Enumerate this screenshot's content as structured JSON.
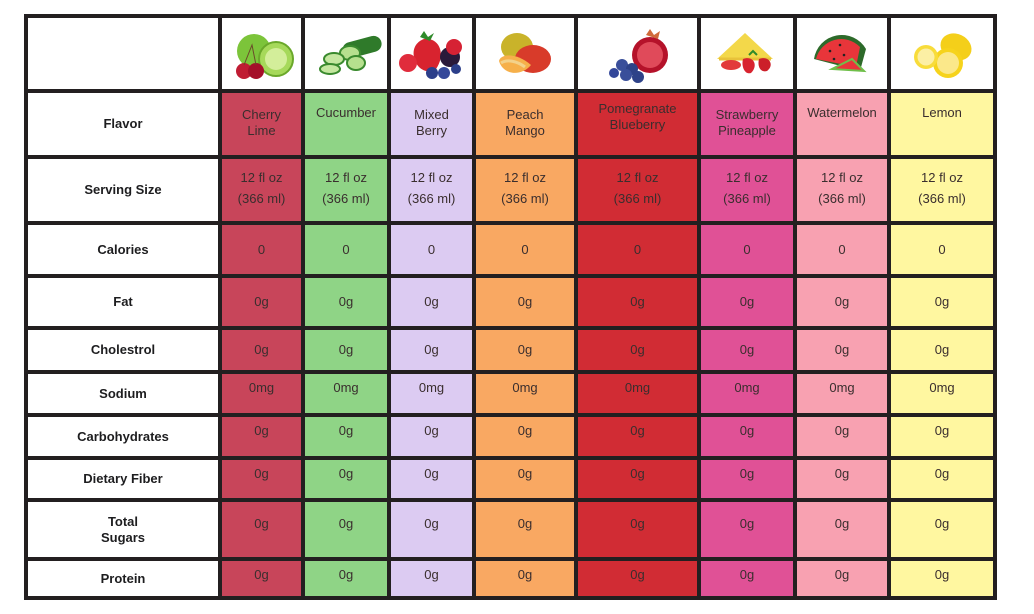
{
  "table": {
    "colors": {
      "border": "#231f20",
      "cherry_lime": "#c8455a",
      "cucumber": "#8fd486",
      "mixed_berry": "#dccbf2",
      "peach_mango": "#f9a862",
      "pomegranate_blueberry": "#d12c34",
      "strawberry_pineapple": "#e05196",
      "watermelon": "#f8a1b1",
      "lemon": "#fff7a0"
    },
    "flavors": [
      {
        "key": "cherry_lime",
        "name": "Cherry Lime",
        "line1": "Cherry",
        "line2": "Lime",
        "image": "cherry-lime-fruit-icon"
      },
      {
        "key": "cucumber",
        "name": "Cucumber",
        "line1": "Cucumber",
        "line2": "",
        "image": "cucumber-fruit-icon"
      },
      {
        "key": "mixed_berry",
        "name": "Mixed Berry",
        "line1": "Mixed",
        "line2": "Berry",
        "image": "mixed-berry-fruit-icon"
      },
      {
        "key": "peach_mango",
        "name": "Peach Mango",
        "line1": "Peach",
        "line2": "Mango",
        "image": "peach-mango-fruit-icon"
      },
      {
        "key": "pomegranate_blueberry",
        "name": "Pomegranate Blueberry",
        "line1": "Pomegranate",
        "line2": "Blueberry",
        "image": "pomegranate-blueberry-fruit-icon"
      },
      {
        "key": "strawberry_pineapple",
        "name": "Strawberry Pineapple",
        "line1": "Strawberry",
        "line2": "Pineapple",
        "image": "strawberry-pineapple-fruit-icon"
      },
      {
        "key": "watermelon",
        "name": "Watermelon",
        "line1": "Watermelon",
        "line2": "",
        "image": "watermelon-fruit-icon"
      },
      {
        "key": "lemon",
        "name": "Lemon",
        "line1": "Lemon",
        "line2": "",
        "image": "lemon-fruit-icon"
      }
    ],
    "rows": [
      {
        "label": "Flavor",
        "label2": ""
      },
      {
        "label": "Serving Size",
        "label2": "",
        "values": [
          "12 fl oz|(366 ml)",
          "12 fl oz|(366 ml)",
          "12 fl oz|(366 ml)",
          "12 fl oz|(366 ml)",
          "12 fl oz|(366 ml)",
          "12 fl oz|(366 ml)",
          "12 fl oz|(366 ml)",
          "12 fl oz|(366 ml)"
        ]
      },
      {
        "label": "Calories",
        "label2": "",
        "values": [
          "0",
          "0",
          "0",
          "0",
          "0",
          "0",
          "0",
          "0"
        ]
      },
      {
        "label": "Fat",
        "label2": "",
        "values": [
          "0g",
          "0g",
          "0g",
          "0g",
          "0g",
          "0g",
          "0g",
          "0g"
        ]
      },
      {
        "label": "Cholestrol",
        "label2": "",
        "values": [
          "0g",
          "0g",
          "0g",
          "0g",
          "0g",
          "0g",
          "0g",
          "0g"
        ]
      },
      {
        "label": "Sodium",
        "label2": "",
        "values": [
          "0mg",
          "0mg",
          "0mg",
          "0mg",
          "0mg",
          "0mg",
          "0mg",
          "0mg"
        ]
      },
      {
        "label": "Carbohydrates",
        "label2": "",
        "values": [
          "0g",
          "0g",
          "0g",
          "0g",
          "0g",
          "0g",
          "0g",
          "0g"
        ]
      },
      {
        "label": "Dietary Fiber",
        "label2": "",
        "values": [
          "0g",
          "0g",
          "0g",
          "0g",
          "0g",
          "0g",
          "0g",
          "0g"
        ]
      },
      {
        "label": "Total",
        "label2": "Sugars",
        "values": [
          "0g",
          "0g",
          "0g",
          "0g",
          "0g",
          "0g",
          "0g",
          "0g"
        ]
      },
      {
        "label": "Protein",
        "label2": "",
        "values": [
          "0g",
          "0g",
          "0g",
          "0g",
          "0g",
          "0g",
          "0g",
          "0g"
        ]
      }
    ]
  }
}
